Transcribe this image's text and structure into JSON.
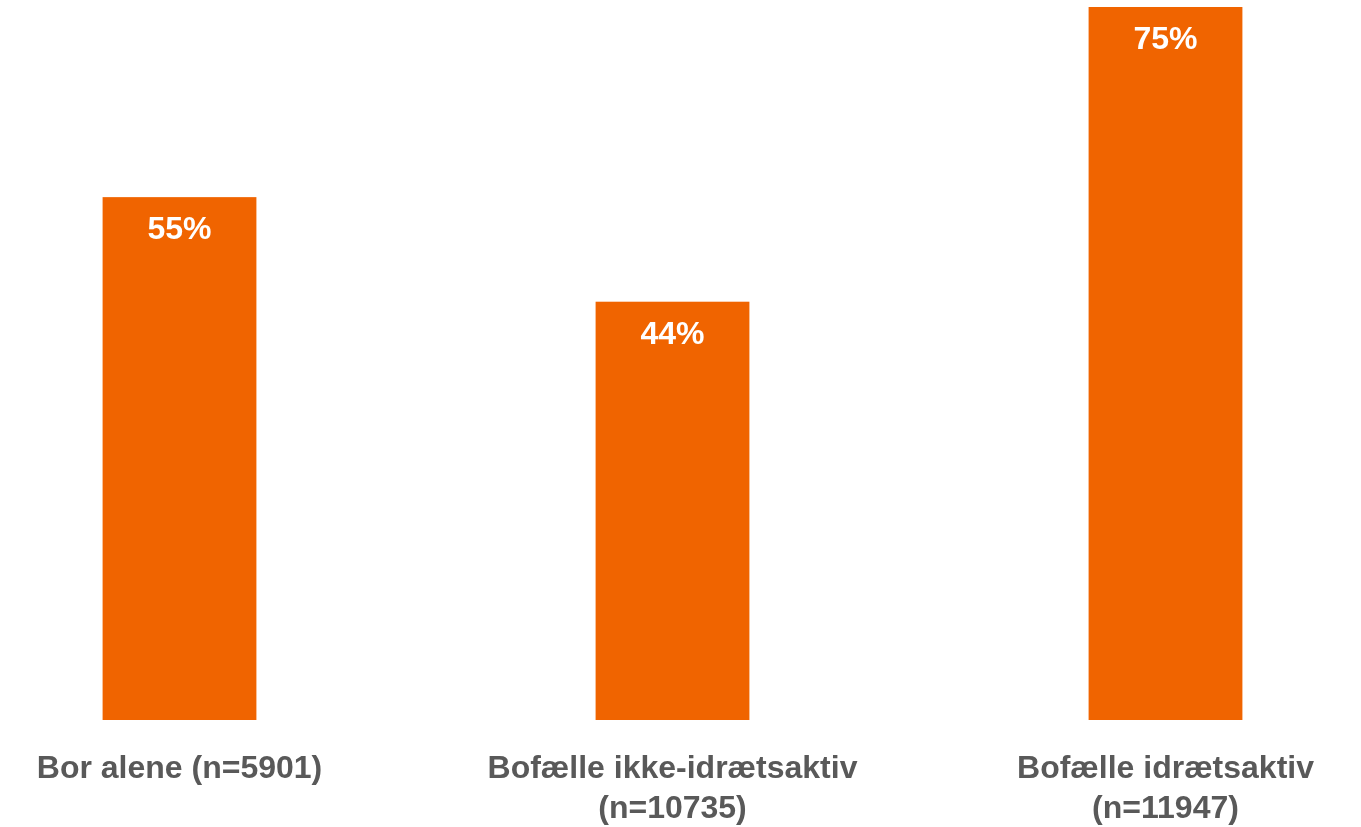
{
  "chart_data": {
    "type": "bar",
    "categories": [
      "Bor alene (n=5901)",
      "Bofælle ikke-idrætsaktiv (n=10735)",
      "Bofælle idrætsaktiv (n=11947)"
    ],
    "values": [
      55,
      44,
      75
    ],
    "value_labels": [
      "55%",
      "44%",
      "75%"
    ],
    "color": "#f06400"
  }
}
